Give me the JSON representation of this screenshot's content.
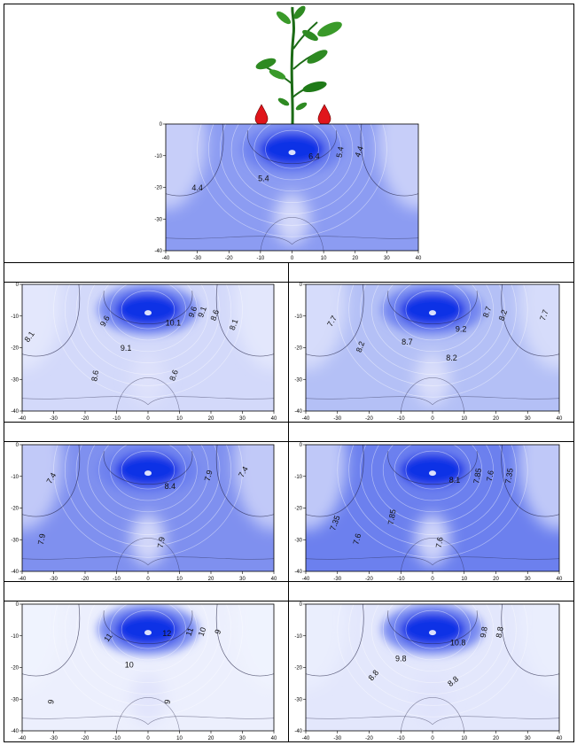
{
  "colors": {
    "deep": "#0a2ee6",
    "mid": "#6b7ff0",
    "light": "#dfe3fb",
    "pale": "#f7f8ff",
    "contour": "#222244",
    "drop": "#e0151b"
  },
  "figure": {
    "icons": [
      "plant-icon",
      "water-drop-icon"
    ]
  },
  "panels": [
    {
      "id": "top",
      "chart_data": {
        "type": "heatmap",
        "subtype": "contour",
        "xlim": [
          -40,
          40
        ],
        "ylim": [
          -40,
          0
        ],
        "xticks": [
          "-40",
          "-30",
          "-20",
          "-10",
          "0",
          "10",
          "20",
          "30",
          "40"
        ],
        "yticks": [
          "0",
          "-10",
          "-20",
          "-30",
          "-40"
        ],
        "emitters_x": [
          -10,
          10
        ],
        "contour_labels": [
          {
            "text": "6.4",
            "x": 7,
            "y": -11
          },
          {
            "text": "5.4",
            "x": 16,
            "y": -9,
            "rotate": -80
          },
          {
            "text": "4.4",
            "x": 22,
            "y": -9,
            "rotate": -70
          },
          {
            "text": "5.4",
            "x": -9,
            "y": -18
          },
          {
            "text": "4.4",
            "x": -30,
            "y": -21
          }
        ]
      }
    },
    {
      "id": "r1-left",
      "chart_data": {
        "type": "heatmap",
        "subtype": "contour",
        "xlim": [
          -40,
          40
        ],
        "ylim": [
          -40,
          0
        ],
        "xticks": [
          "-40",
          "-30",
          "-20",
          "-10",
          "0",
          "10",
          "20",
          "30",
          "40"
        ],
        "yticks": [
          "0",
          "-10",
          "-20",
          "-30",
          "-40"
        ],
        "contour_labels": [
          {
            "text": "9.6",
            "x": -13,
            "y": -12,
            "rotate": -60
          },
          {
            "text": "10.1",
            "x": 8,
            "y": -13
          },
          {
            "text": "9.6",
            "x": 15,
            "y": -9,
            "rotate": -70
          },
          {
            "text": "9.1",
            "x": 18,
            "y": -9,
            "rotate": -70
          },
          {
            "text": "8.6",
            "x": 22,
            "y": -10,
            "rotate": -70
          },
          {
            "text": "8.1",
            "x": 28,
            "y": -13,
            "rotate": -70
          },
          {
            "text": "8.1",
            "x": -37,
            "y": -17,
            "rotate": -55
          },
          {
            "text": "9.1",
            "x": -7,
            "y": -21
          },
          {
            "text": "8.6",
            "x": -16,
            "y": -29,
            "rotate": -80
          },
          {
            "text": "8.6",
            "x": 9,
            "y": -29,
            "rotate": -70
          }
        ]
      }
    },
    {
      "id": "r1-right",
      "chart_data": {
        "type": "heatmap",
        "subtype": "contour",
        "xlim": [
          -40,
          40
        ],
        "ylim": [
          -40,
          0
        ],
        "xticks": [
          "-40",
          "-30",
          "-20",
          "-10",
          "0",
          "10",
          "20",
          "30",
          "40"
        ],
        "yticks": [
          "0",
          "-10",
          "-20",
          "-30",
          "-40"
        ],
        "contour_labels": [
          {
            "text": "8.7",
            "x": 18,
            "y": -9,
            "rotate": -70
          },
          {
            "text": "8.2",
            "x": 23,
            "y": -10,
            "rotate": -70
          },
          {
            "text": "7.7",
            "x": 36,
            "y": -10,
            "rotate": -70
          },
          {
            "text": "7.7",
            "x": -31,
            "y": -12,
            "rotate": -60
          },
          {
            "text": "9.2",
            "x": 9,
            "y": -15
          },
          {
            "text": "8.2",
            "x": -22,
            "y": -20,
            "rotate": -70
          },
          {
            "text": "8.7",
            "x": -8,
            "y": -19
          },
          {
            "text": "8.2",
            "x": 6,
            "y": -24
          }
        ]
      }
    },
    {
      "id": "r2-left",
      "chart_data": {
        "type": "heatmap",
        "subtype": "contour",
        "xlim": [
          -40,
          40
        ],
        "ylim": [
          -40,
          0
        ],
        "xticks": [
          "-40",
          "-30",
          "-20",
          "-10",
          "0",
          "10",
          "20",
          "30",
          "40"
        ],
        "yticks": [
          "0",
          "-10",
          "-20",
          "-30",
          "-40"
        ],
        "contour_labels": [
          {
            "text": "7.4",
            "x": -30,
            "y": -11,
            "rotate": -60
          },
          {
            "text": "7.9",
            "x": 20,
            "y": -10,
            "rotate": -75
          },
          {
            "text": "7.4",
            "x": 31,
            "y": -9,
            "rotate": -60
          },
          {
            "text": "8.4",
            "x": 7,
            "y": -14
          },
          {
            "text": "7.9",
            "x": -33,
            "y": -30,
            "rotate": -80
          },
          {
            "text": "7.9",
            "x": 5,
            "y": -31,
            "rotate": -80
          }
        ]
      }
    },
    {
      "id": "r2-right",
      "chart_data": {
        "type": "heatmap",
        "subtype": "contour",
        "xlim": [
          -40,
          40
        ],
        "ylim": [
          -40,
          0
        ],
        "xticks": [
          "-40",
          "-30",
          "-20",
          "-10",
          "0",
          "10",
          "20",
          "30",
          "40"
        ],
        "yticks": [
          "0",
          "-10",
          "-20",
          "-30",
          "-40"
        ],
        "contour_labels": [
          {
            "text": "7.85",
            "x": 15,
            "y": -10,
            "rotate": -80
          },
          {
            "text": "7.6",
            "x": 19,
            "y": -10,
            "rotate": -80
          },
          {
            "text": "7.35",
            "x": 25,
            "y": -10,
            "rotate": -80
          },
          {
            "text": "8.1",
            "x": 7,
            "y": -12
          },
          {
            "text": "7.35",
            "x": -30,
            "y": -25,
            "rotate": -70
          },
          {
            "text": "7.85",
            "x": -12,
            "y": -23,
            "rotate": -80
          },
          {
            "text": "7.6",
            "x": -23,
            "y": -30,
            "rotate": -75
          },
          {
            "text": "7.6",
            "x": 3,
            "y": -31,
            "rotate": -80
          }
        ]
      }
    },
    {
      "id": "r3-left",
      "chart_data": {
        "type": "heatmap",
        "subtype": "contour",
        "xlim": [
          -40,
          40
        ],
        "ylim": [
          -40,
          0
        ],
        "xticks": [
          "-40",
          "-30",
          "-20",
          "-10",
          "0",
          "10",
          "20",
          "30",
          "40"
        ],
        "yticks": [
          "0",
          "-10",
          "-20",
          "-30",
          "-40"
        ],
        "contour_labels": [
          {
            "text": "11",
            "x": -12,
            "y": -11,
            "rotate": -55
          },
          {
            "text": "12",
            "x": 6,
            "y": -10
          },
          {
            "text": "11",
            "x": 14,
            "y": -9,
            "rotate": -70
          },
          {
            "text": "10",
            "x": 18,
            "y": -9,
            "rotate": -70
          },
          {
            "text": "9",
            "x": 23,
            "y": -9,
            "rotate": -70
          },
          {
            "text": "10",
            "x": -6,
            "y": -20
          },
          {
            "text": "9",
            "x": -30,
            "y": -31,
            "rotate": -80
          },
          {
            "text": "9",
            "x": 7,
            "y": -31,
            "rotate": -80
          }
        ]
      }
    },
    {
      "id": "r3-right",
      "chart_data": {
        "type": "heatmap",
        "subtype": "contour",
        "xlim": [
          -40,
          40
        ],
        "ylim": [
          -40,
          0
        ],
        "xticks": [
          "-40",
          "-30",
          "-20",
          "-10",
          "0",
          "10",
          "20",
          "30",
          "40"
        ],
        "yticks": [
          "0",
          "-10",
          "-20",
          "-30",
          "-40"
        ],
        "contour_labels": [
          {
            "text": "9.8",
            "x": 17,
            "y": -9,
            "rotate": -80
          },
          {
            "text": "8.8",
            "x": 22,
            "y": -9,
            "rotate": -80
          },
          {
            "text": "10.8",
            "x": 8,
            "y": -13
          },
          {
            "text": "9.8",
            "x": -10,
            "y": -18
          },
          {
            "text": "8.8",
            "x": -18,
            "y": -23,
            "rotate": -50
          },
          {
            "text": "8.8",
            "x": 7,
            "y": -25,
            "rotate": -40
          }
        ]
      }
    }
  ]
}
